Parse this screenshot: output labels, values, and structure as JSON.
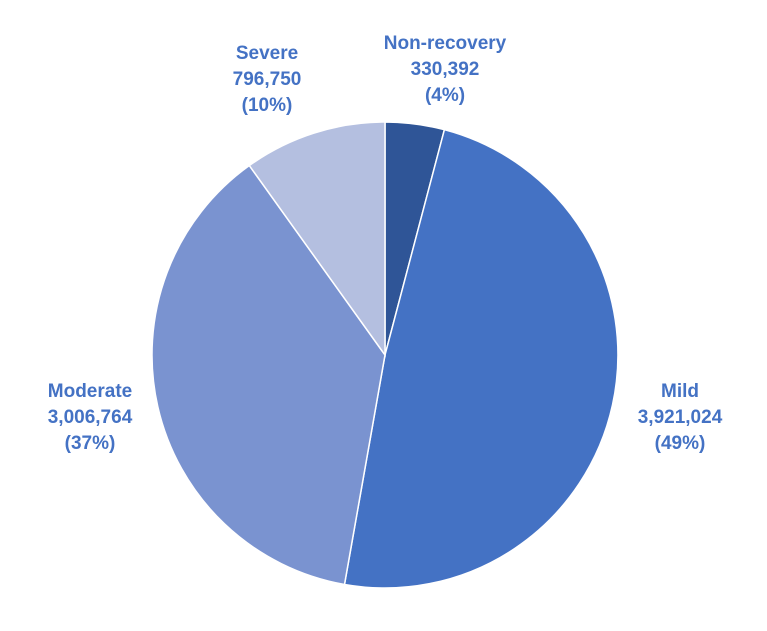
{
  "chart_data": {
    "type": "pie",
    "start_angle_deg": 0,
    "direction": "clockwise",
    "legend": "none",
    "slices": [
      {
        "name": "Non-recovery",
        "value": 330392,
        "value_label": "330,392",
        "percent_label": "(4%)",
        "color": "#2F5597"
      },
      {
        "name": "Mild",
        "value": 3921024,
        "value_label": "3,921,024",
        "percent_label": "(49%)",
        "color": "#4472C4"
      },
      {
        "name": "Moderate",
        "value": 3006764,
        "value_label": "3,006,764",
        "percent_label": "(37%)",
        "color": "#7A93D0"
      },
      {
        "name": "Severe",
        "value": 796750,
        "value_label": "796,750",
        "percent_label": "(10%)",
        "color": "#B4BFE0"
      }
    ],
    "label_color": "#4472C4"
  }
}
